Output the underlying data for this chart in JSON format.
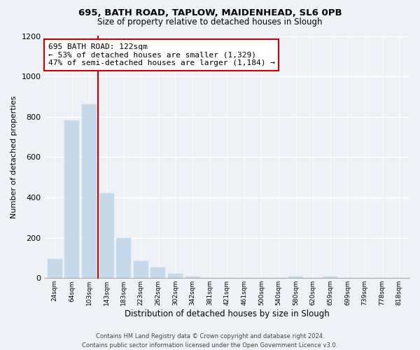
{
  "title1": "695, BATH ROAD, TAPLOW, MAIDENHEAD, SL6 0PB",
  "title2": "Size of property relative to detached houses in Slough",
  "xlabel": "Distribution of detached houses by size in Slough",
  "ylabel": "Number of detached properties",
  "categories": [
    "24sqm",
    "64sqm",
    "103sqm",
    "143sqm",
    "183sqm",
    "223sqm",
    "262sqm",
    "302sqm",
    "342sqm",
    "381sqm",
    "421sqm",
    "461sqm",
    "500sqm",
    "540sqm",
    "580sqm",
    "620sqm",
    "659sqm",
    "699sqm",
    "739sqm",
    "778sqm",
    "818sqm"
  ],
  "values": [
    93,
    783,
    862,
    420,
    200,
    85,
    52,
    22,
    8,
    2,
    1,
    0,
    0,
    0,
    9,
    0,
    9,
    0,
    0,
    0,
    0
  ],
  "bar_color": "#c5d9eb",
  "ref_line_x": 2.5,
  "ref_line_color": "#cc0000",
  "annotation_line1": "695 BATH ROAD: 122sqm",
  "annotation_line2": "← 53% of detached houses are smaller (1,329)",
  "annotation_line3": "47% of semi-detached houses are larger (1,184) →",
  "annotation_box_color": "#ffffff",
  "annotation_box_edge": "#cc0000",
  "footer": "Contains HM Land Registry data © Crown copyright and database right 2024.\nContains public sector information licensed under the Open Government Licence v3.0.",
  "ylim": [
    0,
    1200
  ],
  "yticks": [
    0,
    200,
    400,
    600,
    800,
    1000,
    1200
  ],
  "background_color": "#eef2f7"
}
